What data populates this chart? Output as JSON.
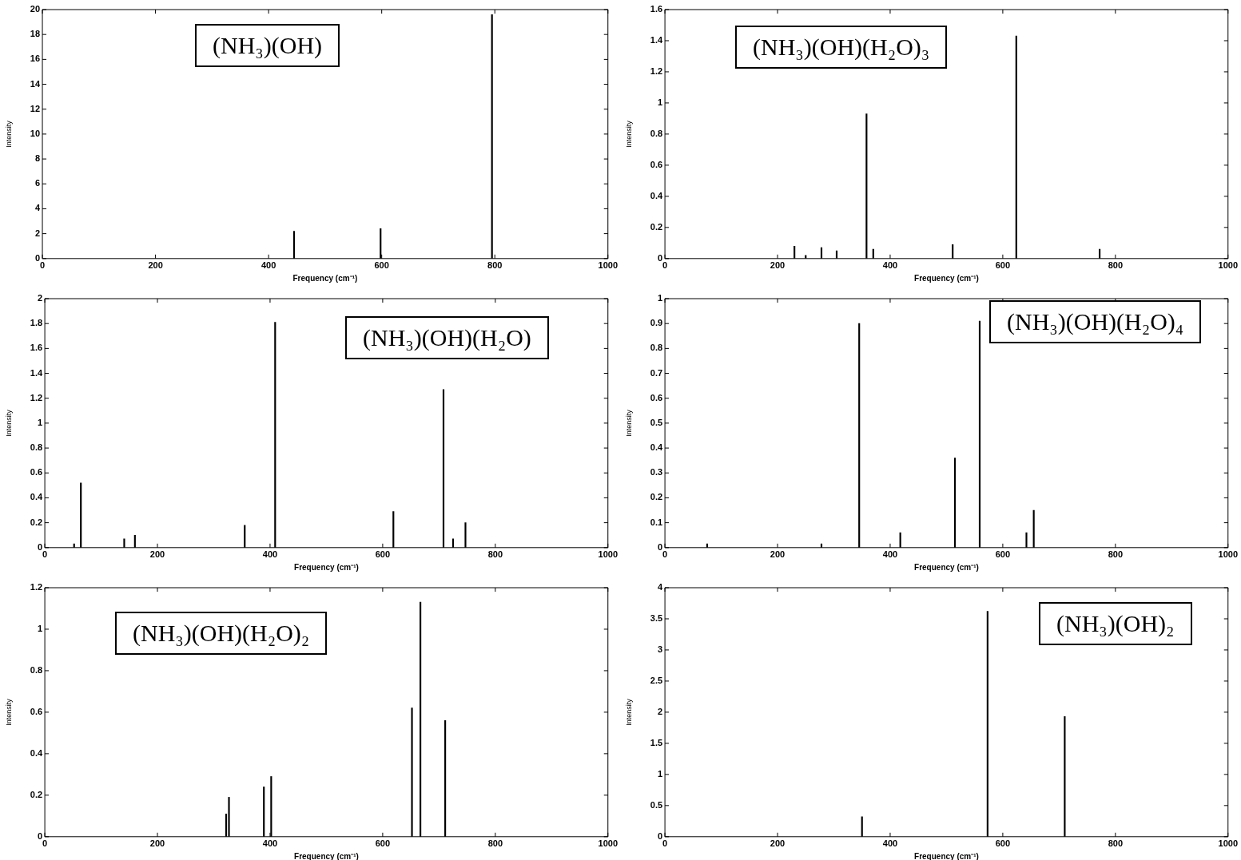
{
  "chart_data": [
    {
      "type": "bar",
      "title": "(NH₃)(OH)",
      "xlabel": "Frequency (cm⁻¹)",
      "ylabel": "Intensity",
      "color": "#000000",
      "xlim": [
        0,
        1000
      ],
      "xticks": [
        0,
        200,
        400,
        600,
        800,
        1000
      ],
      "ylim": [
        0,
        20
      ],
      "yticks": [
        0,
        2,
        4,
        6,
        8,
        10,
        12,
        14,
        16,
        18,
        20
      ],
      "x": [
        445,
        598,
        795
      ],
      "values": [
        2.2,
        2.4,
        19.6
      ]
    },
    {
      "type": "bar",
      "title": "(NH₃)(OH)(H₂O)₃",
      "xlabel": "Frequency (cm⁻¹)",
      "ylabel": "Intensity",
      "color": "#000000",
      "xlim": [
        0,
        1000
      ],
      "xticks": [
        0,
        200,
        400,
        600,
        800,
        1000
      ],
      "ylim": [
        0,
        1.6
      ],
      "yticks": [
        0,
        0.2,
        0.4,
        0.6,
        0.8,
        1,
        1.2,
        1.4,
        1.6
      ],
      "x": [
        230,
        250,
        278,
        305,
        358,
        370,
        511,
        624,
        772
      ],
      "values": [
        0.08,
        0.02,
        0.07,
        0.05,
        0.93,
        0.06,
        0.09,
        1.43,
        0.06
      ]
    },
    {
      "type": "bar",
      "title": "(NH₃)(OH)(H₂O)",
      "xlabel": "Frequency (cm⁻¹)",
      "ylabel": "Intensity",
      "color": "#000000",
      "xlim": [
        0,
        1000
      ],
      "xticks": [
        0,
        200,
        400,
        600,
        800,
        1000
      ],
      "ylim": [
        0,
        2
      ],
      "yticks": [
        0,
        0.2,
        0.4,
        0.6,
        0.8,
        1,
        1.2,
        1.4,
        1.6,
        1.8,
        2
      ],
      "x": [
        52,
        64,
        141,
        160,
        355,
        409,
        619,
        708,
        725,
        747
      ],
      "values": [
        0.03,
        0.52,
        0.07,
        0.1,
        0.18,
        1.81,
        0.29,
        1.27,
        0.07,
        0.2
      ]
    },
    {
      "type": "bar",
      "title": "(NH₃)(OH)(H₂O)₄",
      "xlabel": "Frequency (cm⁻¹)",
      "ylabel": "Intensity",
      "color": "#000000",
      "xlim": [
        0,
        1000
      ],
      "xticks": [
        0,
        200,
        400,
        600,
        800,
        1000
      ],
      "ylim": [
        0,
        1
      ],
      "yticks": [
        0,
        0.1,
        0.2,
        0.3,
        0.4,
        0.5,
        0.6,
        0.7,
        0.8,
        0.9,
        1
      ],
      "x": [
        75,
        278,
        345,
        418,
        515,
        559,
        642,
        655
      ],
      "values": [
        0.015,
        0.015,
        0.9,
        0.06,
        0.36,
        0.91,
        0.06,
        0.15
      ]
    },
    {
      "type": "bar",
      "title": "(NH₃)(OH)(H₂O)₂",
      "xlabel": "Frequency (cm⁻¹)",
      "ylabel": "Intensity",
      "color": "#000000",
      "xlim": [
        0,
        1000
      ],
      "xticks": [
        0,
        200,
        400,
        600,
        800,
        1000
      ],
      "ylim": [
        0,
        1.2
      ],
      "yticks": [
        0,
        0.2,
        0.4,
        0.6,
        0.8,
        1,
        1.2
      ],
      "x": [
        322,
        327,
        389,
        402,
        652,
        667,
        711
      ],
      "values": [
        0.11,
        0.19,
        0.24,
        0.29,
        0.62,
        1.13,
        0.56
      ]
    },
    {
      "type": "bar",
      "title": "(NH₃)(OH)₂",
      "xlabel": "Frequency (cm⁻¹)",
      "ylabel": "Intensity",
      "color": "#000000",
      "xlim": [
        0,
        1000
      ],
      "xticks": [
        0,
        200,
        400,
        600,
        800,
        1000
      ],
      "ylim": [
        0,
        4
      ],
      "yticks": [
        0,
        0.5,
        1,
        1.5,
        2,
        2.5,
        3,
        3.5,
        4
      ],
      "x": [
        350,
        573,
        710
      ],
      "values": [
        0.32,
        3.62,
        1.93
      ]
    }
  ]
}
